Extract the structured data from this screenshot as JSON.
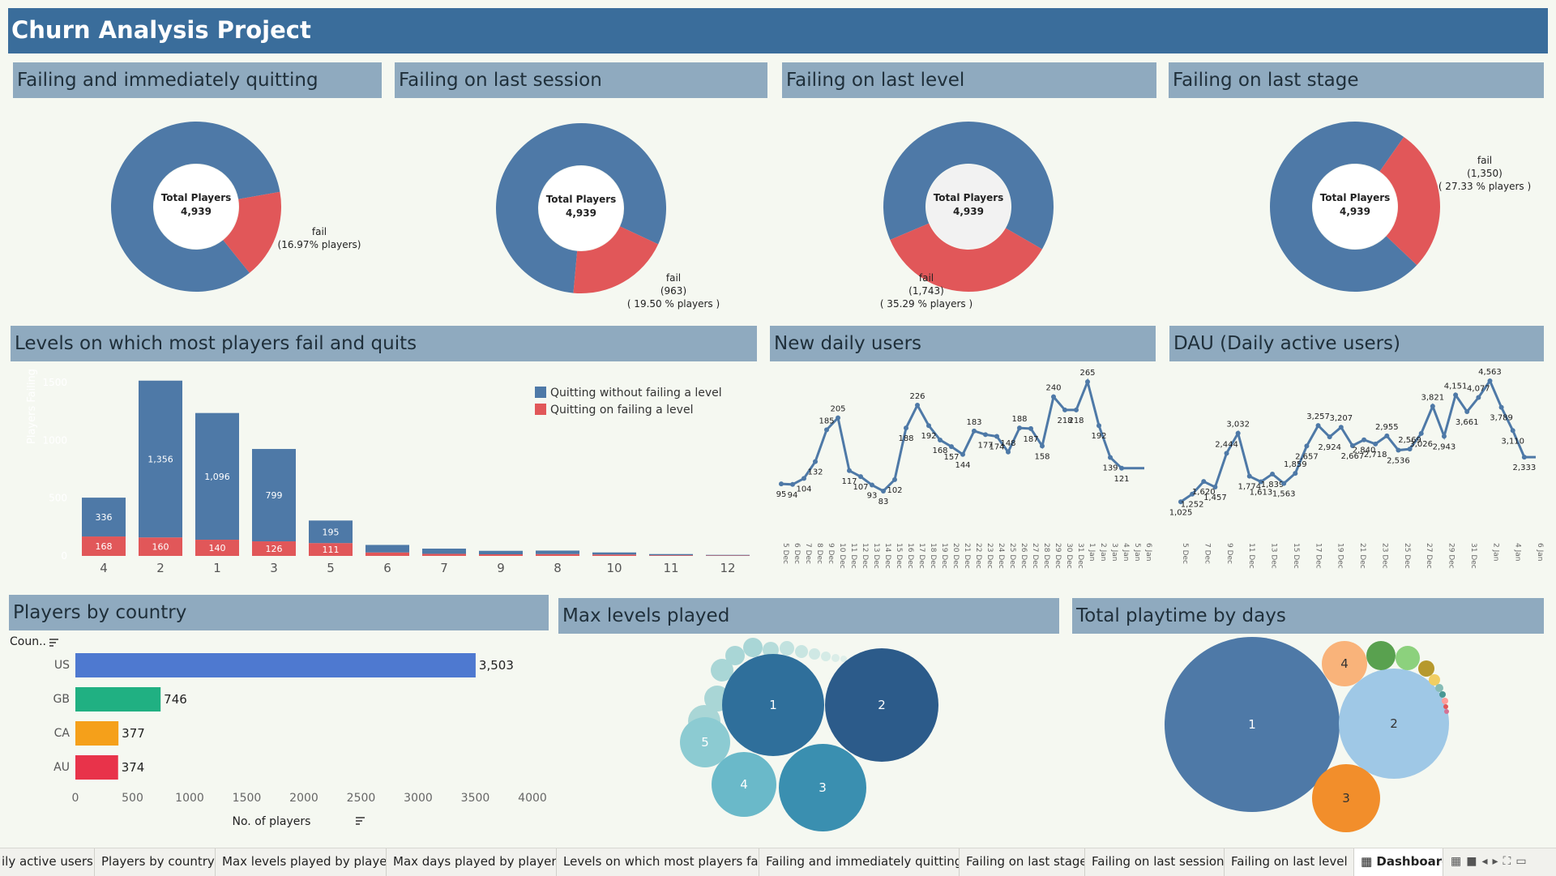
{
  "header": {
    "title": "Churn Analysis Project"
  },
  "panels": {
    "fail_quit": "Failing and immediately quitting",
    "fail_session": "Failing on last session",
    "fail_level": "Failing on last level",
    "fail_stage": "Failing on last stage",
    "levels_fail": "Levels on which most players fail and quits",
    "new_users": "New daily users",
    "dau": "DAU (Daily active users)",
    "by_country": "Players by country",
    "max_levels": "Max levels played",
    "playtime": "Total playtime by days"
  },
  "donuts": [
    {
      "center_label": "Total Players",
      "total": "4,939",
      "fail_fraction": 0.1697,
      "fail_label": "fail",
      "fail_count": "",
      "fail_pct": "(16.97% players)"
    },
    {
      "center_label": "Total Players",
      "total": "4,939",
      "fail_fraction": 0.195,
      "fail_label": "fail",
      "fail_count": "(963)",
      "fail_pct": "( 19.50 % players )"
    },
    {
      "center_label": "Total Players",
      "total": "4,939",
      "fail_fraction": 0.3529,
      "fail_label": "fail",
      "fail_count": "(1,743)",
      "fail_pct": "( 35.29 % players )"
    },
    {
      "center_label": "Total Players",
      "total": "4,939",
      "fail_fraction": 0.2733,
      "fail_label": "fail",
      "fail_count": "(1,350)",
      "fail_pct": "( 27.33 % players )"
    }
  ],
  "colors": {
    "blue": "#4e79a7",
    "red": "#e15759",
    "banner": "#3a6d9b",
    "panel_header": "#8faabf",
    "line": "#4e79a7"
  },
  "chart_data": [
    {
      "type": "bar",
      "title": "Levels on which most players fail and quits",
      "categories": [
        "4",
        "2",
        "1",
        "3",
        "5",
        "6",
        "7",
        "9",
        "8",
        "10",
        "11",
        "12"
      ],
      "series": [
        {
          "name": "Quitting on failing a level",
          "values": [
            168,
            160,
            140,
            126,
            111,
            30,
            18,
            14,
            16,
            12,
            6,
            4
          ]
        },
        {
          "name": "Quitting without failing a level",
          "values": [
            336,
            1356,
            1096,
            799,
            195,
            65,
            45,
            30,
            30,
            18,
            10,
            5
          ]
        }
      ],
      "value_labels": {
        "without": [
          "336",
          "1,356",
          "1,096",
          "799",
          "195"
        ],
        "failing": [
          "168",
          "160",
          "140",
          "126",
          "111"
        ]
      },
      "ylim": [
        0,
        1500
      ],
      "yticks": [
        "1500",
        "1000",
        "500",
        "0"
      ],
      "ylabel": "Players Failing",
      "legend": [
        "Quitting without failing a level",
        "Quitting on failing a level"
      ],
      "legend_position": "top-right"
    },
    {
      "type": "line",
      "title": "New daily users",
      "x": [
        "5 Dec",
        "6 Dec",
        "7 Dec",
        "8 Dec",
        "9 Dec",
        "10 Dec",
        "11 Dec",
        "12 Dec",
        "13 Dec",
        "14 Dec",
        "15 Dec",
        "16 Dec",
        "17 Dec",
        "18 Dec",
        "19 Dec",
        "20 Dec",
        "21 Dec",
        "22 Dec",
        "23 Dec",
        "24 Dec",
        "25 Dec",
        "26 Dec",
        "27 Dec",
        "28 Dec",
        "29 Dec",
        "30 Dec",
        "31 Dec",
        "1 Jan",
        "2 Jan",
        "3 Jan",
        "4 Jan",
        "5 Jan",
        "6 Jan"
      ],
      "values": [
        95,
        94,
        104,
        132,
        185,
        205,
        117,
        107,
        93,
        83,
        102,
        188,
        226,
        192,
        168,
        157,
        144,
        183,
        177,
        174,
        148,
        188,
        187,
        158,
        240,
        218,
        218,
        265,
        192,
        139,
        121,
        121,
        121
      ],
      "ylim": [
        60,
        280
      ]
    },
    {
      "type": "line",
      "title": "DAU (Daily active users)",
      "x": [
        "5 Dec",
        "6 Dec",
        "7 Dec",
        "8 Dec",
        "9 Dec",
        "10 Dec",
        "11 Dec",
        "12 Dec",
        "13 Dec",
        "14 Dec",
        "15 Dec",
        "16 Dec",
        "17 Dec",
        "18 Dec",
        "19 Dec",
        "20 Dec",
        "21 Dec",
        "22 Dec",
        "23 Dec",
        "24 Dec",
        "25 Dec",
        "26 Dec",
        "27 Dec",
        "28 Dec",
        "29 Dec",
        "30 Dec",
        "31 Dec",
        "1 Jan",
        "2 Jan",
        "3 Jan",
        "4 Jan",
        "5 Jan"
      ],
      "x_tick_labels": [
        "5 Dec",
        "7 Dec",
        "9 Dec",
        "11 Dec",
        "13 Dec",
        "15 Dec",
        "17 Dec",
        "19 Dec",
        "21 Dec",
        "23 Dec",
        "25 Dec",
        "27 Dec",
        "29 Dec",
        "31 Dec",
        "2 Jan",
        "4 Jan",
        "6 Jan"
      ],
      "values": [
        1025,
        1252,
        1620,
        1457,
        2444,
        3032,
        1774,
        1613,
        1839,
        1563,
        1859,
        2657,
        3257,
        2924,
        3207,
        2667,
        2840,
        2718,
        2955,
        2536,
        2569,
        3026,
        3821,
        2943,
        4151,
        3661,
        4077,
        4563,
        3789,
        3110,
        2333,
        2333
      ],
      "ylim": [
        700,
        4800
      ]
    },
    {
      "type": "bar",
      "title": "Players by country",
      "categories": [
        "US",
        "GB",
        "CA",
        "AU"
      ],
      "values": [
        3503,
        746,
        377,
        374
      ],
      "value_labels": [
        "3,503",
        "746",
        "377",
        "374"
      ],
      "colors": [
        "#4e79d0",
        "#20b082",
        "#f5a01a",
        "#e8334a"
      ],
      "xlim": [
        0,
        4000
      ],
      "xticks": [
        "0",
        "500",
        "1000",
        "1500",
        "2000",
        "2500",
        "3000",
        "3500",
        "4000"
      ],
      "xlabel": "No. of players",
      "header_label": "Coun.."
    },
    {
      "type": "bubble",
      "title": "Max levels played",
      "labels": [
        "1",
        "2",
        "3",
        "4",
        "5"
      ]
    },
    {
      "type": "bubble",
      "title": "Total playtime by days",
      "labels": [
        "1",
        "2",
        "3",
        "4"
      ]
    }
  ],
  "tabs": [
    "ily active users",
    "Players by country",
    "Max levels played by player",
    "Max days played by players",
    "Levels on which most players fai...",
    "Failing and immediately quitting",
    "Failing on last stage",
    "Failing on last session",
    "Failing on last level",
    "Dashboard"
  ]
}
